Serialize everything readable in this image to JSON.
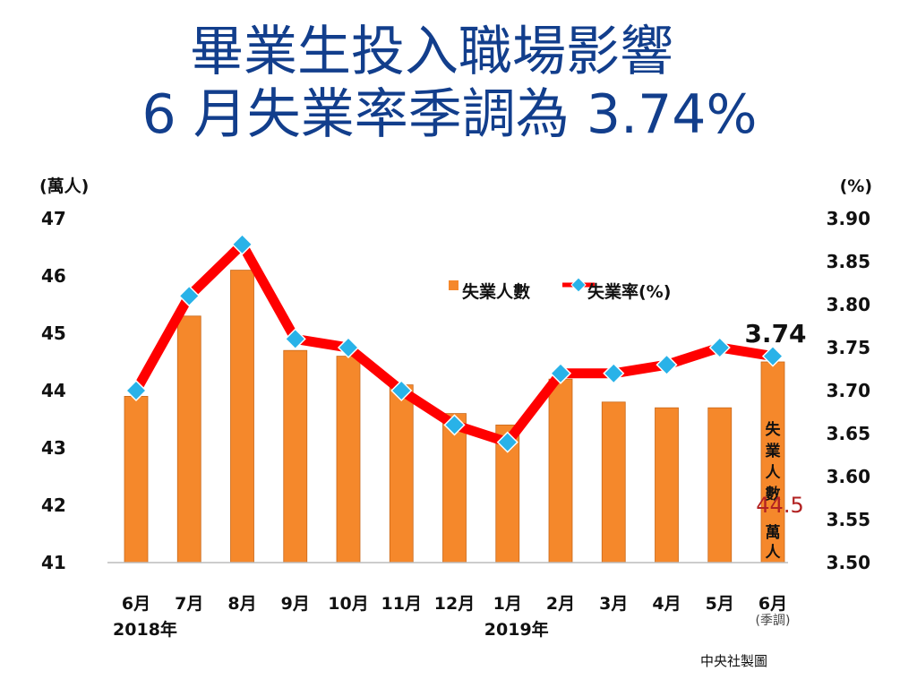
{
  "title_line1": "畢業生投入職場影響",
  "title_line2": "6 月失業率季調為 3.74%",
  "credit": "中央社製圖",
  "colors": {
    "bar": "#f5882b",
    "bar_stroke": "#c8681a",
    "line": "#ff0000",
    "marker": "#29b2e8",
    "title": "#123e8c",
    "callout": "#b22222"
  },
  "chart_data": {
    "type": "bar+line",
    "categories": [
      "6月",
      "7月",
      "8月",
      "9月",
      "10月",
      "11月",
      "12月",
      "1月",
      "2月",
      "3月",
      "4月",
      "5月",
      "6月"
    ],
    "year_labels": [
      {
        "text": "2018年",
        "category_index": 0
      },
      {
        "text": "2019年",
        "category_index": 7
      }
    ],
    "category_note": {
      "text": "(季調)",
      "category_index": 12
    },
    "series": [
      {
        "name": "失業人數",
        "type": "bar",
        "axis": "left",
        "values": [
          43.9,
          45.3,
          46.1,
          44.7,
          44.6,
          44.1,
          43.6,
          43.4,
          44.2,
          43.8,
          43.7,
          43.7,
          44.5
        ]
      },
      {
        "name": "失業率(%)",
        "type": "line",
        "axis": "right",
        "values": [
          3.7,
          3.81,
          3.87,
          3.76,
          3.75,
          3.7,
          3.66,
          3.64,
          3.72,
          3.72,
          3.73,
          3.75,
          3.74
        ]
      }
    ],
    "y_left": {
      "label": "(萬人)",
      "min": 41,
      "max": 47,
      "ticks": [
        "41",
        "42",
        "43",
        "44",
        "45",
        "46",
        "47"
      ]
    },
    "y_right": {
      "label": "(%)",
      "min": 3.5,
      "max": 3.9,
      "ticks": [
        "3.50",
        "3.55",
        "3.60",
        "3.65",
        "3.70",
        "3.75",
        "3.80",
        "3.85",
        "3.90"
      ]
    },
    "annotations": {
      "last_rate": "3.74",
      "last_count_label": "失業人數",
      "last_count_value": "44.5",
      "last_count_unit": "萬人"
    },
    "legend_position": "top-center",
    "grid": false
  }
}
